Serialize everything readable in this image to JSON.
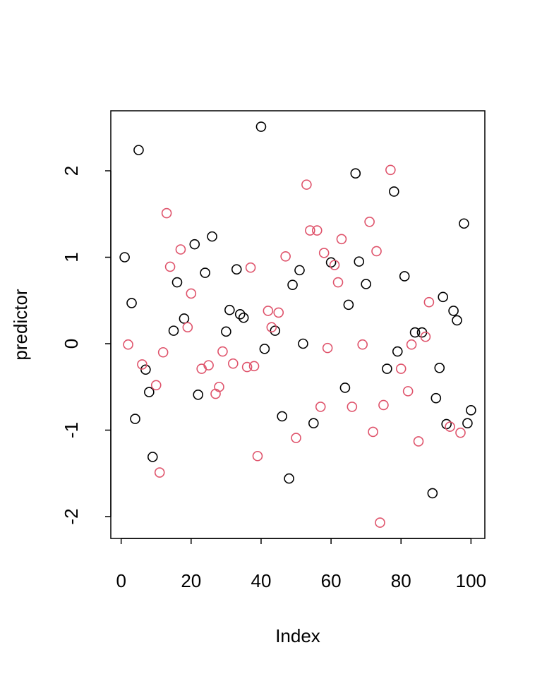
{
  "chart_data": {
    "type": "scatter",
    "xlabel": "Index",
    "ylabel": "predictor",
    "xlim": [
      -2.96,
      103.96
    ],
    "ylim": [
      -2.253,
      2.694
    ],
    "xticks": [
      0,
      20,
      40,
      60,
      80,
      100
    ],
    "yticks": [
      -2,
      -1,
      0,
      1,
      2
    ],
    "grid": false,
    "series": [
      {
        "color": "#000000",
        "x": [
          1,
          3,
          4,
          5,
          7,
          8,
          9,
          15,
          16,
          18,
          21,
          22,
          24,
          26,
          30,
          31,
          33,
          34,
          35,
          40,
          41,
          44,
          46,
          48,
          49,
          51,
          52,
          55,
          60,
          64,
          65,
          67,
          68,
          70,
          76,
          78,
          79,
          81,
          84,
          86,
          89,
          90,
          91,
          92,
          93,
          95,
          96,
          98,
          99,
          100
        ],
        "values": [
          1.0,
          0.47,
          -0.87,
          2.24,
          -0.3,
          -0.56,
          -1.31,
          0.15,
          0.71,
          0.29,
          1.15,
          -0.59,
          0.82,
          1.24,
          0.14,
          0.39,
          0.86,
          0.34,
          0.3,
          2.51,
          -0.06,
          0.15,
          -0.84,
          -1.56,
          0.68,
          0.85,
          0.0,
          -0.92,
          0.94,
          -0.51,
          0.45,
          1.97,
          0.95,
          0.69,
          -0.29,
          1.76,
          -0.09,
          0.78,
          0.13,
          0.13,
          -1.73,
          -0.63,
          -0.28,
          0.54,
          -0.93,
          0.38,
          0.27,
          1.39,
          -0.92,
          -0.77
        ]
      },
      {
        "color": "#DF536B",
        "x": [
          2,
          6,
          10,
          11,
          12,
          13,
          14,
          17,
          19,
          20,
          23,
          25,
          27,
          28,
          29,
          32,
          36,
          37,
          38,
          39,
          42,
          43,
          45,
          47,
          50,
          53,
          54,
          56,
          57,
          58,
          59,
          61,
          62,
          63,
          66,
          69,
          71,
          72,
          73,
          74,
          75,
          77,
          80,
          82,
          83,
          85,
          87,
          88,
          94,
          97
        ],
        "values": [
          -0.01,
          -0.24,
          -0.48,
          -1.49,
          -0.1,
          1.51,
          0.89,
          1.09,
          0.19,
          0.58,
          -0.29,
          -0.25,
          -0.58,
          -0.5,
          -0.09,
          -0.23,
          -0.27,
          0.88,
          -0.26,
          -1.3,
          0.38,
          0.19,
          0.36,
          1.01,
          -1.09,
          1.84,
          1.31,
          1.31,
          -0.73,
          1.05,
          -0.05,
          0.91,
          0.71,
          1.21,
          -0.73,
          -0.01,
          1.41,
          -1.02,
          1.07,
          -2.07,
          -0.71,
          2.01,
          -0.29,
          -0.55,
          -0.01,
          -1.13,
          0.08,
          0.48,
          -0.96,
          -1.03
        ]
      }
    ]
  }
}
